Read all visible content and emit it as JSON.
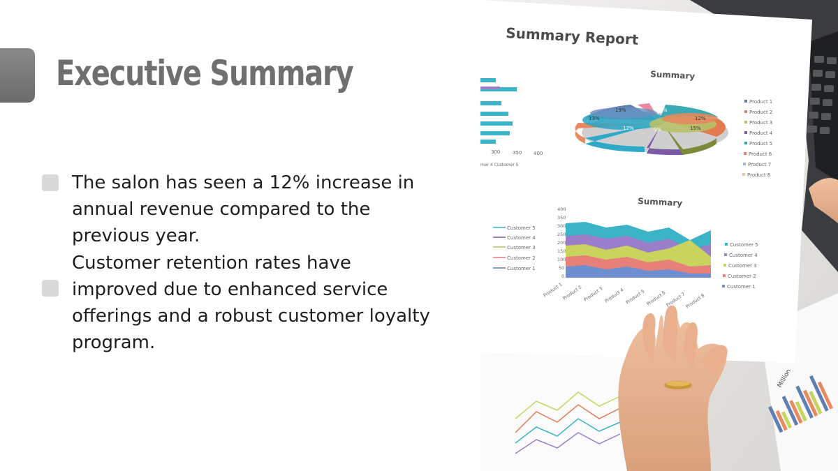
{
  "slide": {
    "title": "Executive Summary",
    "bullets": [
      "The salon has seen a 12% increase in annual revenue compared to the previous year.",
      "Customer retention rates have improved due to enhanced service offerings and a robust customer loyalty program."
    ]
  },
  "photo": {
    "report_title": "Summary Report",
    "pie_title": "Summary",
    "pie_labels": [
      "19%",
      "13%",
      "12%",
      "9%",
      "15%",
      "12%",
      "15%"
    ],
    "pie_legend": [
      "Product 1",
      "Product 2",
      "Product 3",
      "Product 4",
      "Product 5",
      "Product 6",
      "Product 7",
      "Product 8"
    ],
    "area_title": "Summary",
    "area_axis": [
      "400",
      "350",
      "300",
      "250",
      "200",
      "150",
      "100",
      "50",
      "0"
    ],
    "area_categories": [
      "Product 1",
      "Product 2",
      "Product 3",
      "Product 4",
      "Product 5",
      "Product 6",
      "Product 7",
      "Product 8"
    ],
    "area_legend": [
      "Customer 5",
      "Customer 4",
      "Customer 3",
      "Customer 2",
      "Customer 1"
    ],
    "left_legend": [
      "Customer 5",
      "Customer 4",
      "Customer 3",
      "Customer 2",
      "Customer 1"
    ],
    "bar_axis": [
      "300",
      "350",
      "400"
    ],
    "bar_legend": "mer 4  Customer 5",
    "million_label": "Million"
  },
  "colors": {
    "title": "#6f6f6f",
    "accent": "#7a7a7a",
    "marker": "#d9d9d9"
  }
}
